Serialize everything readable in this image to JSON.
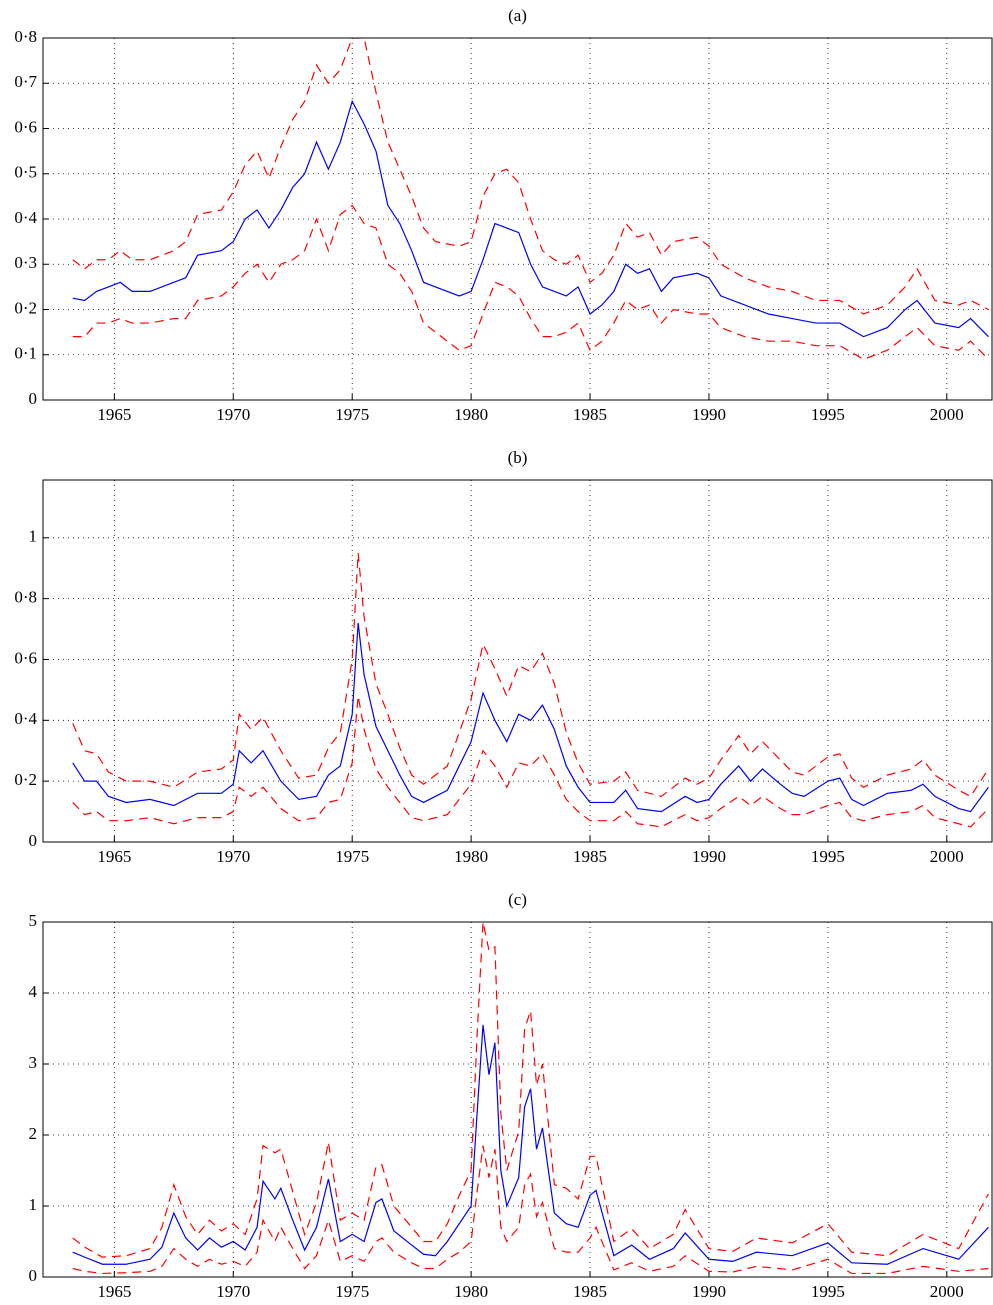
{
  "chart_data": [
    {
      "type": "line",
      "title": "(a)",
      "xlim": [
        1962,
        2001.9
      ],
      "ylim": [
        0,
        0.8
      ],
      "grid": true,
      "xticks": [
        1965,
        1970,
        1975,
        1980,
        1985,
        1990,
        1995,
        2000
      ],
      "yticks": [
        0,
        {
          "value": 0.1,
          "label": "0·1"
        },
        {
          "value": 0.2,
          "label": "0·2"
        },
        {
          "value": 0.3,
          "label": "0·3"
        },
        {
          "value": 0.4,
          "label": "0·4"
        },
        {
          "value": 0.5,
          "label": "0·5"
        },
        {
          "value": 0.6,
          "label": "0·6"
        },
        {
          "value": 0.7,
          "label": "0·7"
        },
        {
          "value": 0.8,
          "label": "0·8"
        }
      ],
      "x": [
        1963.25,
        1963.75,
        1964.25,
        1964.75,
        1965.25,
        1965.75,
        1966.5,
        1967.5,
        1968,
        1968.5,
        1969.5,
        1970,
        1970.5,
        1971,
        1971.5,
        1972,
        1972.5,
        1973,
        1973.5,
        1974,
        1974.5,
        1975,
        1975.5,
        1976,
        1976.5,
        1977,
        1977.5,
        1978,
        1978.5,
        1979.5,
        1980,
        1980.5,
        1981,
        1981.5,
        1982,
        1982.5,
        1983,
        1983.5,
        1984,
        1984.5,
        1985,
        1985.5,
        1986,
        1986.5,
        1987,
        1987.5,
        1988,
        1988.5,
        1989.5,
        1990,
        1990.5,
        1991.5,
        1992.5,
        1993.5,
        1994.5,
        1995.5,
        1996.5,
        1997.5,
        1998.25,
        1998.75,
        1999.5,
        2000.5,
        2001,
        2001.75
      ],
      "series": [
        {
          "color": "#0000ff",
          "line_style": "solid",
          "values": [
            0.225,
            0.22,
            0.24,
            0.25,
            0.26,
            0.24,
            0.24,
            0.26,
            0.27,
            0.32,
            0.33,
            0.35,
            0.4,
            0.42,
            0.38,
            0.42,
            0.47,
            0.5,
            0.57,
            0.51,
            0.57,
            0.66,
            0.61,
            0.55,
            0.43,
            0.39,
            0.33,
            0.26,
            0.25,
            0.23,
            0.24,
            0.31,
            0.39,
            0.38,
            0.37,
            0.3,
            0.25,
            0.24,
            0.23,
            0.25,
            0.19,
            0.21,
            0.24,
            0.3,
            0.28,
            0.29,
            0.24,
            0.27,
            0.28,
            0.27,
            0.23,
            0.21,
            0.19,
            0.18,
            0.17,
            0.17,
            0.14,
            0.16,
            0.2,
            0.22,
            0.17,
            0.16,
            0.18,
            0.14
          ]
        },
        {
          "color": "#ff0000",
          "line_style": "dashed",
          "values": [
            0.31,
            0.29,
            0.31,
            0.31,
            0.33,
            0.31,
            0.31,
            0.33,
            0.35,
            0.41,
            0.42,
            0.46,
            0.52,
            0.55,
            0.49,
            0.56,
            0.62,
            0.66,
            0.74,
            0.7,
            0.73,
            0.8,
            0.8,
            0.68,
            0.57,
            0.51,
            0.45,
            0.38,
            0.35,
            0.34,
            0.35,
            0.45,
            0.5,
            0.51,
            0.48,
            0.4,
            0.33,
            0.31,
            0.3,
            0.32,
            0.26,
            0.28,
            0.32,
            0.39,
            0.36,
            0.37,
            0.32,
            0.35,
            0.36,
            0.34,
            0.3,
            0.27,
            0.25,
            0.24,
            0.22,
            0.22,
            0.19,
            0.21,
            0.25,
            0.29,
            0.22,
            0.21,
            0.22,
            0.2
          ]
        },
        {
          "color": "#ff0000",
          "line_style": "dashed",
          "values": [
            0.14,
            0.14,
            0.17,
            0.17,
            0.18,
            0.17,
            0.17,
            0.18,
            0.18,
            0.22,
            0.23,
            0.25,
            0.28,
            0.3,
            0.26,
            0.3,
            0.31,
            0.33,
            0.4,
            0.33,
            0.41,
            0.43,
            0.39,
            0.38,
            0.3,
            0.28,
            0.24,
            0.17,
            0.15,
            0.11,
            0.12,
            0.19,
            0.26,
            0.25,
            0.23,
            0.18,
            0.14,
            0.14,
            0.15,
            0.17,
            0.11,
            0.13,
            0.17,
            0.22,
            0.2,
            0.21,
            0.17,
            0.2,
            0.19,
            0.19,
            0.16,
            0.14,
            0.13,
            0.13,
            0.12,
            0.12,
            0.09,
            0.11,
            0.14,
            0.16,
            0.12,
            0.11,
            0.13,
            0.09
          ]
        }
      ]
    },
    {
      "type": "line",
      "title": "(b)",
      "xlim": [
        1962,
        2001.9
      ],
      "ylim": [
        0,
        1.19
      ],
      "grid": true,
      "xticks": [
        1965,
        1970,
        1975,
        1980,
        1985,
        1990,
        1995,
        2000
      ],
      "yticks": [
        0,
        {
          "value": 0.2,
          "label": "0·2"
        },
        {
          "value": 0.4,
          "label": "0·4"
        },
        {
          "value": 0.6,
          "label": "0·6"
        },
        {
          "value": 0.8,
          "label": "0·8"
        },
        1
      ],
      "x": [
        1963.25,
        1963.75,
        1964.25,
        1964.75,
        1965.5,
        1966.5,
        1967.5,
        1968.5,
        1969.5,
        1970,
        1970.25,
        1970.75,
        1971.25,
        1972,
        1972.75,
        1973.5,
        1974,
        1974.5,
        1975,
        1975.25,
        1975.5,
        1976,
        1976.5,
        1977,
        1977.5,
        1978,
        1979,
        1979.5,
        1980,
        1980.5,
        1981,
        1981.5,
        1982,
        1982.5,
        1983,
        1983.5,
        1984,
        1984.5,
        1985,
        1986,
        1986.5,
        1987,
        1988,
        1989,
        1989.5,
        1990,
        1990.5,
        1991.25,
        1991.75,
        1992.25,
        1993,
        1993.5,
        1994,
        1995,
        1995.5,
        1996,
        1996.5,
        1997.5,
        1998.5,
        1999,
        1999.5,
        2000.5,
        2001,
        2001.75
      ],
      "series": [
        {
          "color": "#0000ff",
          "line_style": "solid",
          "values": [
            0.26,
            0.2,
            0.2,
            0.15,
            0.13,
            0.14,
            0.12,
            0.16,
            0.16,
            0.19,
            0.3,
            0.26,
            0.3,
            0.2,
            0.14,
            0.15,
            0.22,
            0.25,
            0.42,
            0.72,
            0.55,
            0.38,
            0.3,
            0.22,
            0.15,
            0.13,
            0.17,
            0.25,
            0.33,
            0.49,
            0.4,
            0.33,
            0.42,
            0.4,
            0.45,
            0.37,
            0.25,
            0.18,
            0.13,
            0.13,
            0.17,
            0.11,
            0.1,
            0.15,
            0.13,
            0.14,
            0.19,
            0.25,
            0.2,
            0.24,
            0.19,
            0.16,
            0.15,
            0.2,
            0.21,
            0.14,
            0.12,
            0.16,
            0.17,
            0.19,
            0.15,
            0.11,
            0.1,
            0.18
          ]
        },
        {
          "color": "#ff0000",
          "line_style": "dashed",
          "values": [
            0.39,
            0.3,
            0.29,
            0.23,
            0.2,
            0.2,
            0.18,
            0.23,
            0.24,
            0.27,
            0.42,
            0.37,
            0.41,
            0.3,
            0.21,
            0.22,
            0.31,
            0.36,
            0.6,
            0.95,
            0.74,
            0.52,
            0.42,
            0.31,
            0.22,
            0.19,
            0.25,
            0.36,
            0.47,
            0.65,
            0.57,
            0.48,
            0.58,
            0.56,
            0.62,
            0.52,
            0.36,
            0.26,
            0.19,
            0.2,
            0.23,
            0.17,
            0.15,
            0.21,
            0.19,
            0.21,
            0.27,
            0.35,
            0.29,
            0.33,
            0.27,
            0.23,
            0.22,
            0.28,
            0.29,
            0.21,
            0.18,
            0.22,
            0.24,
            0.27,
            0.22,
            0.17,
            0.15,
            0.24
          ]
        },
        {
          "color": "#ff0000",
          "line_style": "dashed",
          "values": [
            0.13,
            0.09,
            0.1,
            0.07,
            0.07,
            0.08,
            0.06,
            0.08,
            0.08,
            0.1,
            0.18,
            0.15,
            0.18,
            0.11,
            0.07,
            0.08,
            0.13,
            0.14,
            0.26,
            0.48,
            0.37,
            0.24,
            0.18,
            0.13,
            0.08,
            0.07,
            0.09,
            0.14,
            0.19,
            0.3,
            0.25,
            0.18,
            0.26,
            0.25,
            0.29,
            0.22,
            0.14,
            0.1,
            0.07,
            0.07,
            0.1,
            0.06,
            0.05,
            0.09,
            0.07,
            0.08,
            0.11,
            0.15,
            0.12,
            0.15,
            0.11,
            0.09,
            0.09,
            0.12,
            0.13,
            0.08,
            0.07,
            0.09,
            0.1,
            0.12,
            0.08,
            0.06,
            0.05,
            0.11
          ]
        }
      ]
    },
    {
      "type": "line",
      "title": "(c)",
      "xlim": [
        1962,
        2001.9
      ],
      "ylim": [
        0,
        5
      ],
      "grid": true,
      "xticks": [
        1965,
        1970,
        1975,
        1980,
        1985,
        1990,
        1995,
        2000
      ],
      "yticks": [
        0,
        1,
        2,
        3,
        4,
        5
      ],
      "x": [
        1963.25,
        1963.75,
        1964.5,
        1965.5,
        1966.5,
        1967,
        1967.5,
        1968,
        1968.5,
        1969,
        1969.5,
        1970,
        1970.5,
        1971,
        1971.25,
        1971.75,
        1972,
        1972.5,
        1973,
        1973.5,
        1974,
        1974.5,
        1975,
        1975.5,
        1976,
        1976.25,
        1976.75,
        1977.5,
        1978,
        1978.5,
        1979,
        1979.5,
        1980,
        1980.25,
        1980.5,
        1980.75,
        1981,
        1981.25,
        1981.5,
        1982,
        1982.25,
        1982.5,
        1982.75,
        1983,
        1983.5,
        1984,
        1984.5,
        1985,
        1985.25,
        1986,
        1986.75,
        1987.5,
        1988.5,
        1989,
        1990,
        1991,
        1992,
        1993.5,
        1995,
        1996,
        1997.5,
        1999,
        2000.5,
        2001.75
      ],
      "series": [
        {
          "color": "#0000ff",
          "line_style": "solid",
          "values": [
            0.35,
            0.28,
            0.18,
            0.18,
            0.25,
            0.42,
            0.9,
            0.55,
            0.38,
            0.55,
            0.42,
            0.5,
            0.38,
            0.7,
            1.35,
            1.1,
            1.25,
            0.8,
            0.38,
            0.7,
            1.38,
            0.5,
            0.6,
            0.5,
            1.05,
            1.1,
            0.65,
            0.45,
            0.32,
            0.3,
            0.5,
            0.75,
            1.0,
            2.3,
            3.55,
            2.85,
            3.3,
            1.5,
            1.0,
            1.4,
            2.4,
            2.65,
            1.8,
            2.1,
            0.9,
            0.75,
            0.7,
            1.15,
            1.22,
            0.3,
            0.45,
            0.25,
            0.4,
            0.62,
            0.25,
            0.22,
            0.35,
            0.3,
            0.48,
            0.2,
            0.18,
            0.4,
            0.25,
            0.7
          ]
        },
        {
          "color": "#ff0000",
          "line_style": "dashed",
          "values": [
            0.55,
            0.42,
            0.28,
            0.3,
            0.4,
            0.7,
            1.3,
            0.85,
            0.6,
            0.8,
            0.65,
            0.75,
            0.6,
            1.1,
            1.85,
            1.75,
            1.8,
            1.2,
            0.6,
            1.05,
            1.9,
            0.8,
            0.9,
            0.8,
            1.55,
            1.58,
            1.0,
            0.7,
            0.5,
            0.5,
            0.75,
            1.15,
            1.5,
            3.4,
            5.0,
            4.6,
            4.65,
            2.3,
            1.5,
            2.05,
            3.5,
            3.75,
            2.7,
            3.0,
            1.3,
            1.25,
            1.1,
            1.7,
            1.7,
            0.5,
            0.68,
            0.4,
            0.6,
            0.95,
            0.4,
            0.36,
            0.55,
            0.48,
            0.75,
            0.35,
            0.3,
            0.6,
            0.4,
            1.17
          ]
        },
        {
          "color": "#ff0000",
          "line_style": "dashed",
          "values": [
            0.12,
            0.08,
            0.05,
            0.06,
            0.08,
            0.15,
            0.4,
            0.25,
            0.15,
            0.25,
            0.18,
            0.22,
            0.15,
            0.35,
            0.8,
            0.5,
            0.7,
            0.4,
            0.12,
            0.3,
            0.8,
            0.22,
            0.3,
            0.22,
            0.5,
            0.55,
            0.35,
            0.2,
            0.12,
            0.12,
            0.25,
            0.35,
            0.5,
            1.2,
            1.85,
            1.4,
            1.8,
            0.7,
            0.5,
            0.7,
            1.3,
            1.45,
            0.85,
            1.05,
            0.4,
            0.35,
            0.35,
            0.55,
            0.7,
            0.1,
            0.2,
            0.08,
            0.15,
            0.3,
            0.08,
            0.07,
            0.15,
            0.1,
            0.25,
            0.05,
            0.05,
            0.15,
            0.08,
            0.12
          ]
        }
      ]
    }
  ]
}
